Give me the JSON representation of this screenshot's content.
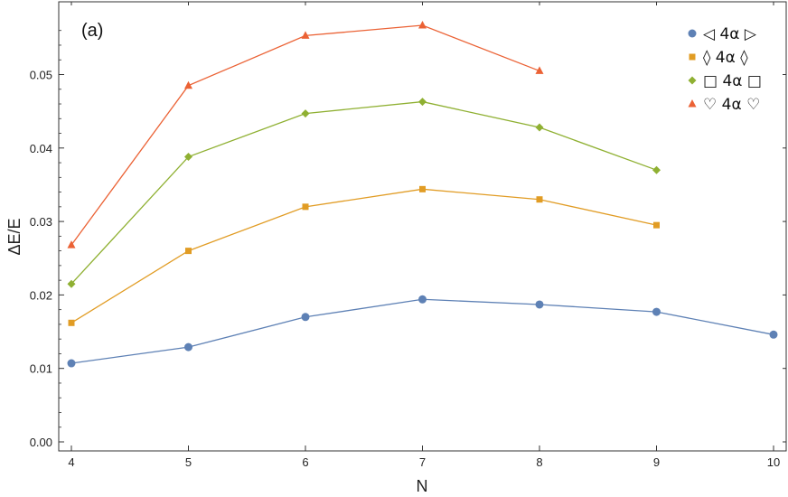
{
  "chart_data": {
    "type": "line",
    "panel_label": "(a)",
    "xlabel": "N",
    "ylabel": "ΔE/E",
    "xlim": [
      4,
      10
    ],
    "ylim": [
      0,
      0.058
    ],
    "x_ticks": [
      "4",
      "5",
      "6",
      "7",
      "8",
      "9",
      "10"
    ],
    "y_ticks": [
      "0.00",
      "0.01",
      "0.02",
      "0.03",
      "0.04",
      "0.05"
    ],
    "grid": false,
    "legend_position": "top-right",
    "series": [
      {
        "name": "◁ 4α ▷",
        "color": "#5E81B5",
        "marker": "circle",
        "x": [
          4,
          5,
          6,
          7,
          8,
          9,
          10
        ],
        "y": [
          0.0107,
          0.0129,
          0.017,
          0.0194,
          0.0187,
          0.0177,
          0.0146
        ]
      },
      {
        "name": "◊ 4α ◊",
        "color": "#E19C24",
        "marker": "square",
        "x": [
          4,
          5,
          6,
          7,
          8,
          9
        ],
        "y": [
          0.0162,
          0.026,
          0.032,
          0.0344,
          0.033,
          0.0295
        ]
      },
      {
        "name": "□ 4α □",
        "color": "#8FB032",
        "marker": "diamond",
        "x": [
          4,
          5,
          6,
          7,
          8,
          9
        ],
        "y": [
          0.0215,
          0.0388,
          0.0447,
          0.0463,
          0.0428,
          0.037
        ]
      },
      {
        "name": "♡ 4α ♡",
        "color": "#EB6235",
        "marker": "triangle",
        "x": [
          4,
          5,
          6,
          7,
          8
        ],
        "y": [
          0.0268,
          0.0485,
          0.0553,
          0.0567,
          0.0505
        ]
      }
    ]
  }
}
